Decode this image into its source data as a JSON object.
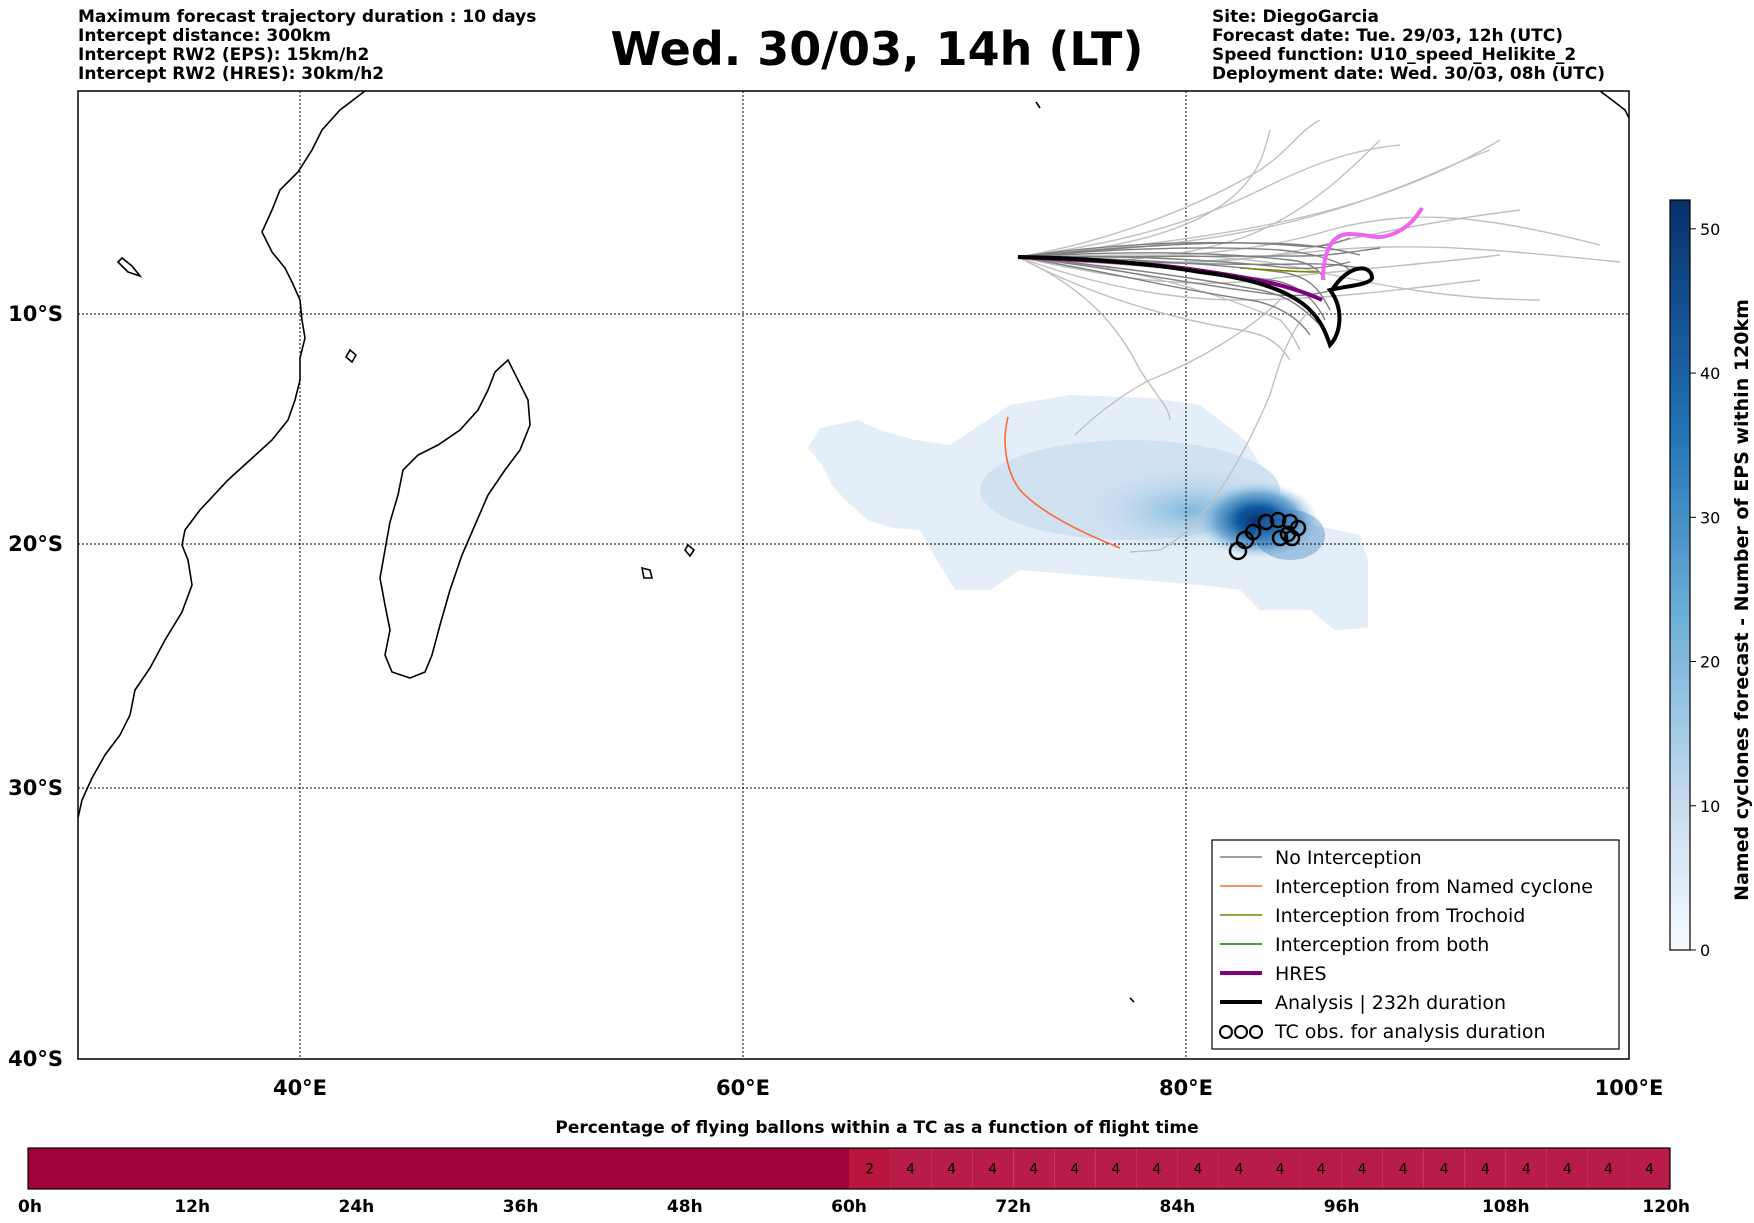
{
  "header": {
    "left_lines": [
      "Maximum forecast trajectory duration : 10 days",
      "Intercept distance: 300km",
      "Intercept RW2 (EPS):  15km/h2",
      "Intercept RW2 (HRES): 30km/h2"
    ],
    "title": "Wed. 30/03, 14h (LT)",
    "right_lines": [
      "Site: DiegoGarcia",
      "Forecast date: Tue. 29/03, 12h (UTC)",
      "Speed function: U10_speed_Helikite_2",
      "Deployment date: Wed. 30/03, 08h (UTC)"
    ]
  },
  "map": {
    "lon_range": [
      30,
      100
    ],
    "lat_range": [
      -40,
      1
    ],
    "lon_ticks": [
      {
        "value": 40,
        "label": "40°E"
      },
      {
        "value": 60,
        "label": "60°E"
      },
      {
        "value": 80,
        "label": "80°E"
      },
      {
        "value": 100,
        "label": "100°E"
      }
    ],
    "lat_ticks": [
      {
        "value": -10,
        "label": "10°S"
      },
      {
        "value": -20,
        "label": "20°S"
      },
      {
        "value": -30,
        "label": "30°S"
      },
      {
        "value": -40,
        "label": "40°S"
      }
    ],
    "colors": {
      "no_interception": "#808080",
      "ensemble_light": "#c0c0c0",
      "named_cyclone": "#ff6a33",
      "trochoid": "#808000",
      "both": "#008000",
      "hres": "#800080",
      "analysis": "#000000",
      "forecast_pink": "#ee66ee",
      "density_low": "#deebf7",
      "density_high": "#08306b"
    }
  },
  "legend": {
    "items": [
      {
        "label": "No Interception",
        "color": "#808080",
        "style": "thin"
      },
      {
        "label": "Interception from Named cyclone",
        "color": "#ff6a33",
        "style": "thin"
      },
      {
        "label": "Interception from Trochoid",
        "color": "#808000",
        "style": "thin"
      },
      {
        "label": "Interception from both",
        "color": "#008000",
        "style": "thin"
      },
      {
        "label": "HRES",
        "color": "#800080",
        "style": "thick"
      },
      {
        "label": "Analysis | 232h duration",
        "color": "#000000",
        "style": "thick"
      },
      {
        "label": "TC obs. for analysis duration",
        "color": "#000000",
        "style": "symbol"
      }
    ]
  },
  "colorbar": {
    "label": "Named cyclones forecast - Number of EPS within 120km",
    "range": [
      0,
      52
    ],
    "ticks": [
      0,
      10,
      20,
      30,
      40,
      50
    ]
  },
  "timeline": {
    "title": "Percentage of flying ballons within a TC as a function of flight time",
    "tick_labels": [
      "0h",
      "12h",
      "24h",
      "36h",
      "48h",
      "60h",
      "72h",
      "84h",
      "96h",
      "108h",
      "120h"
    ],
    "cells": [
      {
        "start_h": 0,
        "end_h": 60,
        "value": "",
        "color": "#a0003c"
      },
      {
        "start_h": 60,
        "end_h": 63,
        "value": "2",
        "color": "#b8163f"
      },
      {
        "start_h": 63,
        "end_h": 66,
        "value": "4",
        "color": "#b81d47"
      },
      {
        "start_h": 66,
        "end_h": 69,
        "value": "4",
        "color": "#b81d47"
      },
      {
        "start_h": 69,
        "end_h": 72,
        "value": "4",
        "color": "#b81d47"
      },
      {
        "start_h": 72,
        "end_h": 75,
        "value": "4",
        "color": "#b81d47"
      },
      {
        "start_h": 75,
        "end_h": 78,
        "value": "4",
        "color": "#b81d47"
      },
      {
        "start_h": 78,
        "end_h": 81,
        "value": "4",
        "color": "#b81d47"
      },
      {
        "start_h": 81,
        "end_h": 84,
        "value": "4",
        "color": "#b81d47"
      },
      {
        "start_h": 84,
        "end_h": 87,
        "value": "4",
        "color": "#b81d47"
      },
      {
        "start_h": 87,
        "end_h": 90,
        "value": "4",
        "color": "#b81d47"
      },
      {
        "start_h": 90,
        "end_h": 93,
        "value": "4",
        "color": "#b81d47"
      },
      {
        "start_h": 93,
        "end_h": 96,
        "value": "4",
        "color": "#b81d47"
      },
      {
        "start_h": 96,
        "end_h": 99,
        "value": "4",
        "color": "#b81d47"
      },
      {
        "start_h": 99,
        "end_h": 102,
        "value": "4",
        "color": "#b81d47"
      },
      {
        "start_h": 102,
        "end_h": 105,
        "value": "4",
        "color": "#b81d47"
      },
      {
        "start_h": 105,
        "end_h": 108,
        "value": "4",
        "color": "#b81d47"
      },
      {
        "start_h": 108,
        "end_h": 111,
        "value": "4",
        "color": "#b81d47"
      },
      {
        "start_h": 111,
        "end_h": 114,
        "value": "4",
        "color": "#b81d47"
      },
      {
        "start_h": 114,
        "end_h": 117,
        "value": "4",
        "color": "#b81d47"
      },
      {
        "start_h": 117,
        "end_h": 120,
        "value": "4",
        "color": "#b81d47"
      }
    ]
  }
}
